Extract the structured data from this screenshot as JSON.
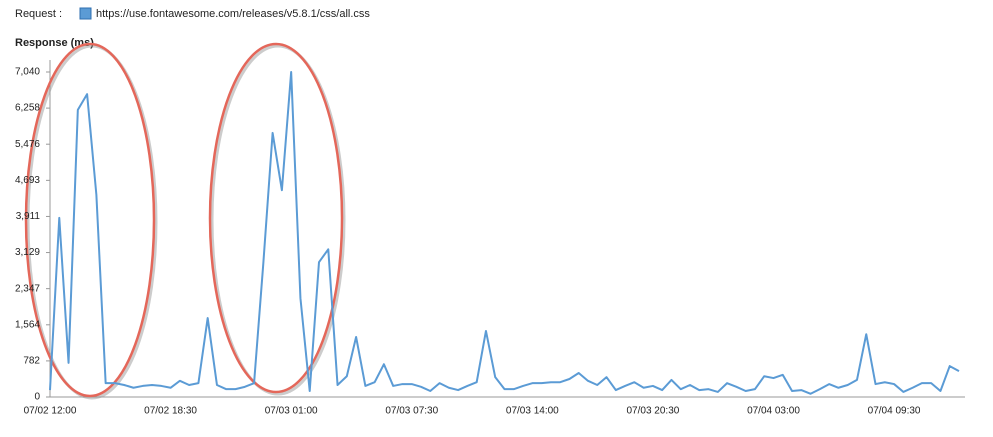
{
  "chart_data": {
    "type": "line",
    "legend_title": "Request :",
    "ylabel": "Response (ms)",
    "categories": [
      "07/02 12:00",
      null,
      null,
      null,
      null,
      null,
      null,
      null,
      null,
      null,
      null,
      null,
      null,
      "07/02 18:30",
      null,
      null,
      null,
      null,
      null,
      null,
      null,
      null,
      null,
      null,
      null,
      null,
      "07/03 01:00",
      null,
      null,
      null,
      null,
      null,
      null,
      null,
      null,
      null,
      null,
      null,
      null,
      "07/03 07:30",
      null,
      null,
      null,
      null,
      null,
      null,
      null,
      null,
      null,
      null,
      null,
      null,
      "07/03 14:00",
      null,
      null,
      null,
      null,
      null,
      null,
      null,
      null,
      null,
      null,
      null,
      null,
      "07/03 20:30",
      null,
      null,
      null,
      null,
      null,
      null,
      null,
      null,
      null,
      null,
      null,
      null,
      "07/04 03:00",
      null,
      null,
      null,
      null,
      null,
      null,
      null,
      null,
      null,
      null,
      null,
      null,
      "07/04 09:30",
      null,
      null,
      null,
      null,
      null,
      null,
      null
    ],
    "series": [
      {
        "name": "https://use.fontawesome.com/releases/v5.8.1/css/all.css",
        "color": "#5b9bd5",
        "values": [
          150,
          3880,
          740,
          6220,
          6560,
          4380,
          300,
          300,
          260,
          200,
          240,
          260,
          240,
          200,
          350,
          260,
          300,
          1710,
          260,
          170,
          170,
          220,
          300,
          2900,
          5720,
          4480,
          7040,
          2140,
          130,
          2920,
          3200,
          260,
          450,
          1300,
          240,
          320,
          710,
          240,
          280,
          280,
          220,
          130,
          300,
          200,
          150,
          240,
          320,
          1430,
          430,
          170,
          170,
          240,
          300,
          300,
          320,
          320,
          390,
          520,
          350,
          260,
          430,
          150,
          240,
          320,
          200,
          240,
          150,
          370,
          170,
          260,
          150,
          170,
          110,
          300,
          220,
          130,
          170,
          450,
          410,
          480,
          130,
          150,
          70,
          170,
          280,
          200,
          260,
          370,
          1360,
          280,
          320,
          280,
          110,
          200,
          300,
          300,
          130,
          670,
          560
        ]
      }
    ],
    "ylim": [
      0,
      7040
    ],
    "yticks": [
      0,
      782,
      {
        "value": 1564,
        "label": "1,564"
      },
      {
        "value": 2347,
        "label": "2,347"
      },
      {
        "value": 3129,
        "label": "3,129"
      },
      {
        "value": 3911,
        "label": "3,911"
      },
      {
        "value": 4693,
        "label": "4,693"
      },
      {
        "value": 5476,
        "label": "5,476"
      },
      {
        "value": 6258,
        "label": "6,258"
      },
      {
        "value": 7040,
        "label": "7,040"
      }
    ],
    "grid": false
  }
}
